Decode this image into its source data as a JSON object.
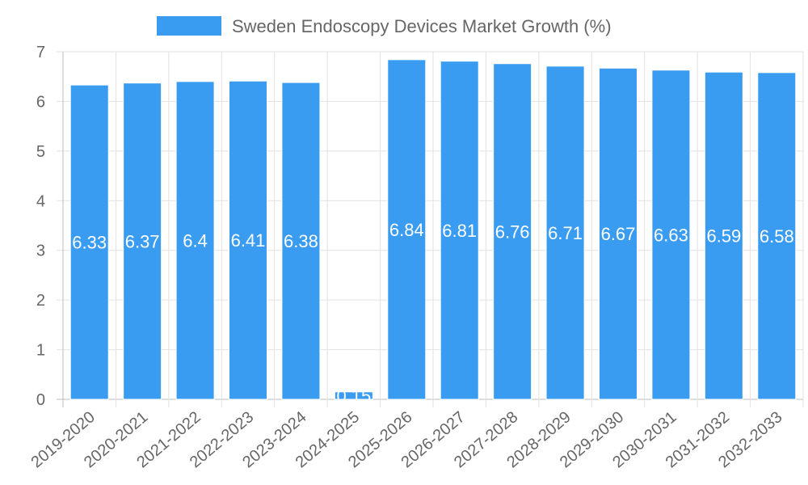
{
  "chart_data": {
    "type": "bar",
    "categories": [
      "2019-2020",
      "2020-2021",
      "2021-2022",
      "2022-2023",
      "2023-2024",
      "2024-2025",
      "2025-2026",
      "2026-2027",
      "2027-2028",
      "2028-2029",
      "2029-2030",
      "2030-2031",
      "2031-2032",
      "2032-2033"
    ],
    "series": [
      {
        "name": "Sweden Endoscopy Devices Market Growth (%)",
        "values": [
          6.33,
          6.37,
          6.4,
          6.41,
          6.38,
          0.15,
          6.84,
          6.81,
          6.76,
          6.71,
          6.67,
          6.63,
          6.59,
          6.58
        ],
        "color": "#3a9cf0"
      }
    ],
    "title": "",
    "xlabel": "",
    "ylabel": "",
    "ylim": [
      0,
      7
    ],
    "yticks": [
      0,
      1,
      2,
      3,
      4,
      5,
      6,
      7
    ],
    "grid": true,
    "legend_position": "top-center",
    "data_labels": true
  }
}
